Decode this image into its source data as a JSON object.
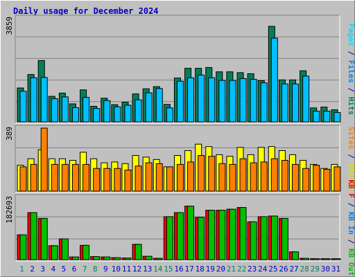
{
  "title": "Daily usage for December 2024",
  "colors": {
    "hits": "#00805c",
    "files": "#00c0ff",
    "pages": "#00e0ff",
    "visits": "#ffff00",
    "sites": "#ff8000",
    "kb_in": "#0080ff",
    "kb_out": "#00c000",
    "kb_f": "#ff0000",
    "weekend_day": "#00805c",
    "weekday_day": "#0000c0",
    "plot_bg": "#c0c0c0",
    "grid": "#808080"
  },
  "right_legends": {
    "panel1": [
      {
        "text": "Pages",
        "color": "#00e0ff"
      },
      {
        "text": " / ",
        "color": "#0000c0"
      },
      {
        "text": "Files",
        "color": "#0080ff"
      },
      {
        "text": " / ",
        "color": "#0000c0"
      },
      {
        "text": "Hits",
        "color": "#00805c"
      }
    ],
    "panel2": [
      {
        "text": "Sites",
        "color": "#ff8000"
      },
      {
        "text": " / ",
        "color": "#0000c0"
      },
      {
        "text": "Visits",
        "color": "#e0e000"
      }
    ],
    "panel3": [
      {
        "text": "KB F",
        "color": "#ff0000"
      },
      {
        "text": " / ",
        "color": "#0000c0"
      },
      {
        "text": "KB In",
        "color": "#0080ff"
      },
      {
        "text": " / ",
        "color": "#0000c0"
      },
      {
        "text": "KB Out",
        "color": "#00c000"
      }
    ]
  },
  "chart_data": [
    {
      "type": "bar",
      "panel": "hits-files-pages",
      "ymax_label": "3859",
      "ylim": [
        0,
        3859
      ],
      "categories": [
        "1",
        "2",
        "3",
        "4",
        "5",
        "6",
        "7",
        "8",
        "9",
        "10",
        "11",
        "12",
        "13",
        "14",
        "15",
        "16",
        "17",
        "18",
        "19",
        "20",
        "21",
        "22",
        "23",
        "24",
        "25",
        "26",
        "27",
        "28",
        "29",
        "30",
        "31"
      ],
      "weekend_days": [
        1,
        7,
        8,
        14,
        15,
        21,
        22,
        28,
        29
      ],
      "grid": true,
      "series": [
        {
          "name": "Hits",
          "values": [
            1260,
            1760,
            2280,
            950,
            1070,
            670,
            1190,
            580,
            880,
            640,
            730,
            1040,
            1230,
            1310,
            650,
            1630,
            1990,
            1990,
            2020,
            1860,
            1860,
            1830,
            1790,
            1530,
            3550,
            1560,
            1560,
            1900,
            520,
            550,
            450
          ]
        },
        {
          "name": "Files",
          "values": [
            1140,
            1640,
            1650,
            860,
            930,
            530,
            910,
            500,
            790,
            560,
            620,
            820,
            1080,
            1240,
            520,
            1510,
            1640,
            1740,
            1640,
            1540,
            1540,
            1610,
            1580,
            1450,
            3110,
            1410,
            1410,
            1700,
            400,
            400,
            350
          ]
        }
      ]
    },
    {
      "type": "bar",
      "panel": "visits-sites",
      "ymax_label": "389",
      "ylim": [
        0,
        389
      ],
      "categories": [
        "1",
        "2",
        "3",
        "4",
        "5",
        "6",
        "7",
        "8",
        "9",
        "10",
        "11",
        "12",
        "13",
        "14",
        "15",
        "16",
        "17",
        "18",
        "19",
        "20",
        "21",
        "22",
        "23",
        "24",
        "25",
        "26",
        "27",
        "28",
        "29",
        "30",
        "31"
      ],
      "grid": true,
      "series": [
        {
          "name": "Visits",
          "values": [
            160,
            200,
            255,
            200,
            200,
            190,
            240,
            200,
            175,
            180,
            170,
            220,
            210,
            195,
            150,
            220,
            250,
            290,
            275,
            225,
            215,
            270,
            225,
            270,
            275,
            250,
            225,
            190,
            165,
            140,
            165
          ]
        },
        {
          "name": "Sites",
          "values": [
            150,
            165,
            389,
            165,
            165,
            165,
            165,
            140,
            140,
            140,
            130,
            155,
            175,
            170,
            150,
            165,
            180,
            220,
            215,
            170,
            165,
            200,
            175,
            180,
            200,
            190,
            165,
            140,
            160,
            135,
            150
          ]
        }
      ]
    },
    {
      "type": "bar",
      "panel": "kbin-kbout",
      "ymax_label": "182693",
      "ylim": [
        0,
        182693
      ],
      "categories": [
        "1",
        "2",
        "3",
        "4",
        "5",
        "6",
        "7",
        "8",
        "9",
        "10",
        "11",
        "12",
        "13",
        "14",
        "15",
        "16",
        "17",
        "18",
        "19",
        "20",
        "21",
        "22",
        "23",
        "24",
        "25",
        "26",
        "27",
        "28",
        "29",
        "30",
        "31"
      ],
      "grid": true,
      "series": [
        {
          "name": "KB F",
          "values": [
            73000,
            138000,
            121000,
            41000,
            61000,
            8000,
            42000,
            9000,
            8000,
            6000,
            5000,
            45000,
            10000,
            4000,
            126000,
            138000,
            157000,
            124000,
            145000,
            145000,
            148000,
            153000,
            111000,
            126000,
            128000,
            121000,
            23000,
            4000,
            3000,
            3000,
            3000
          ]
        },
        {
          "name": "KB In",
          "values": [
            0,
            0,
            0,
            0,
            0,
            0,
            0,
            0,
            0,
            0,
            0,
            0,
            0,
            0,
            0,
            0,
            0,
            0,
            0,
            0,
            0,
            0,
            0,
            0,
            0,
            0,
            0,
            0,
            0,
            0,
            0
          ]
        },
        {
          "name": "KB Out",
          "values": [
            73000,
            138000,
            121000,
            41000,
            61000,
            8000,
            42000,
            9000,
            8000,
            6000,
            5000,
            45000,
            10000,
            4000,
            126000,
            138000,
            157000,
            124000,
            145000,
            145000,
            148000,
            153000,
            111000,
            126000,
            128000,
            121000,
            23000,
            4000,
            3000,
            3000,
            3000
          ]
        }
      ]
    }
  ]
}
